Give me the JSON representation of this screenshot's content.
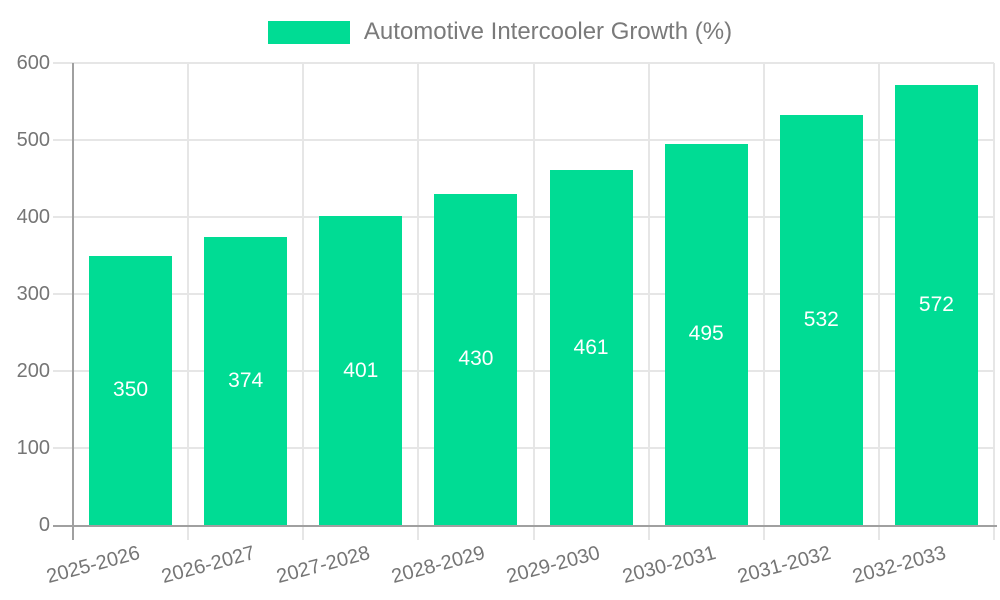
{
  "chart_data": {
    "type": "bar",
    "title": "Automotive Intercooler Growth (%)",
    "categories": [
      "2025-2026",
      "2026-2027",
      "2027-2028",
      "2028-2029",
      "2029-2030",
      "2030-2031",
      "2031-2032",
      "2032-2033"
    ],
    "values": [
      350,
      374,
      401,
      430,
      461,
      495,
      532,
      572
    ],
    "xlabel": "",
    "ylabel": "",
    "ylim": [
      0,
      600
    ],
    "yticks": [
      0,
      100,
      200,
      300,
      400,
      500,
      600
    ],
    "grid": true,
    "legend_position": "top-center",
    "x_tick_rotation_deg": -15,
    "bar_color": "#00DC94",
    "value_label_color": "#ffffff",
    "axis_text_color": "#757575",
    "gridline_color": "#E6E6E6",
    "axis_line_color": "#A0A0A0",
    "background_color": "#ffffff"
  }
}
